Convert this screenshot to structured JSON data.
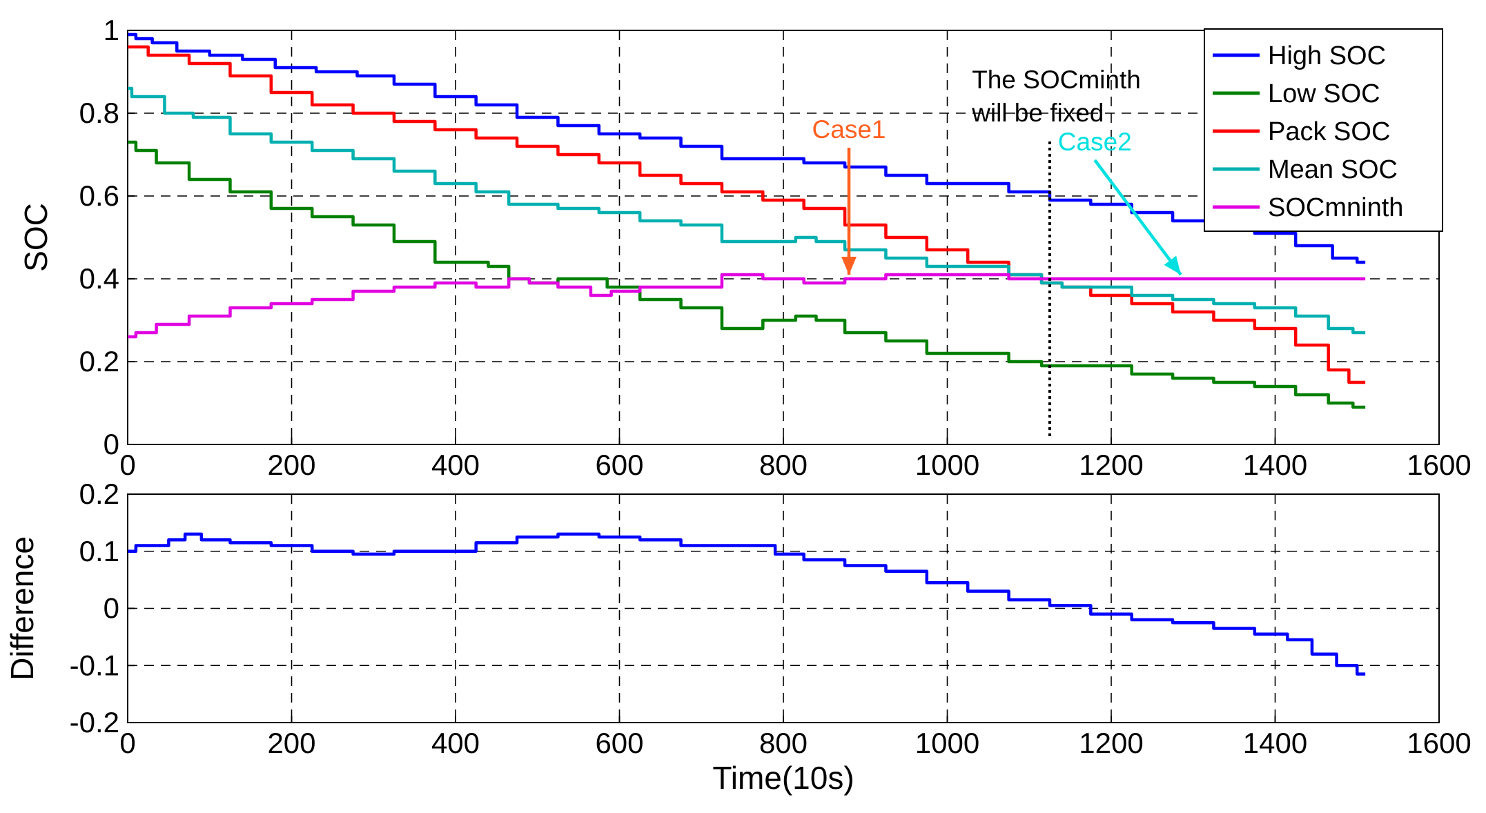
{
  "chart_data": [
    {
      "type": "line",
      "name": "soc-panel",
      "xlabel": "",
      "ylabel": "SOC",
      "xlim": [
        0,
        1600
      ],
      "ylim": [
        0,
        1
      ],
      "xticks": [
        0,
        200,
        400,
        600,
        800,
        1000,
        1200,
        1400,
        1600
      ],
      "yticks": [
        0,
        0.2,
        0.4,
        0.6,
        0.8,
        1
      ],
      "xtick_labels": [
        "0",
        "200",
        "400",
        "600",
        "800",
        "1000",
        "1200",
        "1400",
        "1600"
      ],
      "ytick_labels": [
        "0",
        "0.2",
        "0.4",
        "0.6",
        "0.8",
        "1"
      ],
      "grid": true,
      "legend_position": "top-right",
      "series": [
        {
          "name": "High SOC",
          "color": "#0000ff",
          "x": [
            0,
            20,
            40,
            80,
            120,
            160,
            200,
            260,
            300,
            350,
            400,
            450,
            500,
            550,
            600,
            650,
            700,
            750,
            800,
            850,
            900,
            950,
            1000,
            1050,
            1100,
            1150,
            1200,
            1250,
            1300,
            1350,
            1400,
            1450,
            1490,
            1510
          ],
          "y": [
            0.99,
            0.98,
            0.97,
            0.95,
            0.94,
            0.93,
            0.91,
            0.9,
            0.89,
            0.87,
            0.84,
            0.82,
            0.79,
            0.77,
            0.75,
            0.74,
            0.72,
            0.69,
            0.69,
            0.68,
            0.67,
            0.65,
            0.63,
            0.63,
            0.61,
            0.59,
            0.58,
            0.56,
            0.54,
            0.53,
            0.51,
            0.48,
            0.45,
            0.44
          ]
        },
        {
          "name": "Low SOC",
          "color": "#008000",
          "x": [
            0,
            20,
            50,
            100,
            150,
            200,
            250,
            300,
            350,
            400,
            430,
            450,
            480,
            500,
            550,
            570,
            600,
            650,
            700,
            750,
            800,
            830,
            850,
            900,
            950,
            1000,
            1050,
            1100,
            1130,
            1150,
            1200,
            1250,
            1300,
            1350,
            1400,
            1450,
            1480,
            1510
          ],
          "y": [
            0.73,
            0.71,
            0.68,
            0.64,
            0.61,
            0.57,
            0.55,
            0.53,
            0.49,
            0.44,
            0.44,
            0.43,
            0.4,
            0.39,
            0.4,
            0.4,
            0.38,
            0.35,
            0.33,
            0.28,
            0.3,
            0.31,
            0.3,
            0.27,
            0.25,
            0.22,
            0.22,
            0.2,
            0.19,
            0.19,
            0.19,
            0.17,
            0.16,
            0.15,
            0.14,
            0.12,
            0.1,
            0.09
          ]
        },
        {
          "name": "Pack SOC",
          "color": "#ff0000",
          "x": [
            0,
            50,
            100,
            150,
            200,
            250,
            300,
            350,
            400,
            450,
            500,
            550,
            600,
            650,
            700,
            750,
            800,
            850,
            900,
            950,
            1000,
            1050,
            1100,
            1130,
            1150,
            1200,
            1250,
            1300,
            1350,
            1400,
            1450,
            1480,
            1500,
            1510
          ],
          "y": [
            0.96,
            0.94,
            0.92,
            0.89,
            0.85,
            0.82,
            0.8,
            0.78,
            0.76,
            0.74,
            0.72,
            0.7,
            0.68,
            0.65,
            0.63,
            0.61,
            0.59,
            0.57,
            0.53,
            0.5,
            0.47,
            0.44,
            0.41,
            0.39,
            0.38,
            0.36,
            0.34,
            0.32,
            0.3,
            0.28,
            0.24,
            0.18,
            0.15,
            0.15
          ]
        },
        {
          "name": "Mean SOC",
          "color": "#00b0b0",
          "x": [
            0,
            10,
            30,
            60,
            100,
            150,
            200,
            250,
            300,
            350,
            400,
            450,
            480,
            500,
            550,
            600,
            650,
            700,
            750,
            800,
            830,
            850,
            900,
            950,
            1000,
            1050,
            1100,
            1130,
            1150,
            1200,
            1250,
            1300,
            1350,
            1400,
            1450,
            1480,
            1510
          ],
          "y": [
            0.86,
            0.84,
            0.84,
            0.8,
            0.79,
            0.75,
            0.73,
            0.71,
            0.69,
            0.66,
            0.63,
            0.61,
            0.58,
            0.58,
            0.57,
            0.56,
            0.54,
            0.53,
            0.49,
            0.49,
            0.5,
            0.49,
            0.47,
            0.45,
            0.43,
            0.43,
            0.41,
            0.39,
            0.38,
            0.38,
            0.36,
            0.35,
            0.34,
            0.33,
            0.31,
            0.28,
            0.27
          ]
        },
        {
          "name": "SOCmninth",
          "color": "#e000e0",
          "x": [
            0,
            20,
            50,
            100,
            150,
            200,
            250,
            300,
            350,
            400,
            450,
            480,
            500,
            550,
            580,
            600,
            650,
            700,
            750,
            800,
            850,
            900,
            950,
            1000,
            1050,
            1100,
            1130,
            1200,
            1300,
            1400,
            1510
          ],
          "y": [
            0.26,
            0.27,
            0.29,
            0.31,
            0.33,
            0.34,
            0.35,
            0.37,
            0.38,
            0.39,
            0.38,
            0.4,
            0.39,
            0.38,
            0.36,
            0.37,
            0.38,
            0.38,
            0.41,
            0.4,
            0.39,
            0.4,
            0.41,
            0.41,
            0.41,
            0.4,
            0.4,
            0.4,
            0.4,
            0.4,
            0.4
          ]
        }
      ],
      "annotations": [
        {
          "text": "Case1",
          "color": "#ff6020",
          "x": 880,
          "y": 0.74,
          "arrow_to": [
            880,
            0.41
          ]
        },
        {
          "text": "Case2",
          "color": "#00e0e0",
          "x": 1180,
          "y": 0.71,
          "arrow_to": [
            1285,
            0.41
          ]
        },
        {
          "text_lines": [
            "The SOCminth",
            "will be fixed"
          ],
          "color": "#000000",
          "x": 1030,
          "y": 0.86
        }
      ],
      "marker_line": {
        "x": 1125,
        "y_from": 0.02,
        "y_to": 0.74,
        "style": "dotted",
        "color": "#000000"
      }
    },
    {
      "type": "line",
      "name": "difference-panel",
      "xlabel": "Time(10s)",
      "ylabel": "Difference",
      "xlim": [
        0,
        1600
      ],
      "ylim": [
        -0.2,
        0.2
      ],
      "xticks": [
        0,
        200,
        400,
        600,
        800,
        1000,
        1200,
        1400,
        1600
      ],
      "yticks": [
        -0.2,
        -0.1,
        0,
        0.1,
        0.2
      ],
      "xtick_labels": [
        "0",
        "200",
        "400",
        "600",
        "800",
        "1000",
        "1200",
        "1400",
        "1600"
      ],
      "ytick_labels": [
        "-0.2",
        "-0.1",
        "0",
        "0.1",
        "0.2"
      ],
      "grid": true,
      "series": [
        {
          "name": "Difference",
          "color": "#0000ff",
          "x": [
            0,
            20,
            40,
            60,
            80,
            100,
            150,
            200,
            250,
            300,
            350,
            400,
            450,
            500,
            550,
            600,
            650,
            700,
            750,
            780,
            800,
            850,
            900,
            950,
            1000,
            1050,
            1100,
            1150,
            1200,
            1250,
            1300,
            1350,
            1400,
            1430,
            1460,
            1490,
            1510
          ],
          "y": [
            0.1,
            0.11,
            0.11,
            0.12,
            0.13,
            0.12,
            0.115,
            0.11,
            0.1,
            0.095,
            0.1,
            0.1,
            0.115,
            0.125,
            0.13,
            0.125,
            0.12,
            0.11,
            0.11,
            0.11,
            0.095,
            0.085,
            0.075,
            0.065,
            0.045,
            0.03,
            0.015,
            0.005,
            -0.01,
            -0.02,
            -0.025,
            -0.035,
            -0.045,
            -0.055,
            -0.08,
            -0.1,
            -0.115
          ]
        }
      ]
    }
  ],
  "legend": {
    "entries": [
      {
        "label": "High SOC",
        "color": "#0000ff"
      },
      {
        "label": "Low SOC",
        "color": "#008000"
      },
      {
        "label": "Pack SOC",
        "color": "#ff0000"
      },
      {
        "label": "Mean SOC",
        "color": "#00b0b0"
      },
      {
        "label": "SOCmninth",
        "color": "#e000e0"
      }
    ]
  }
}
